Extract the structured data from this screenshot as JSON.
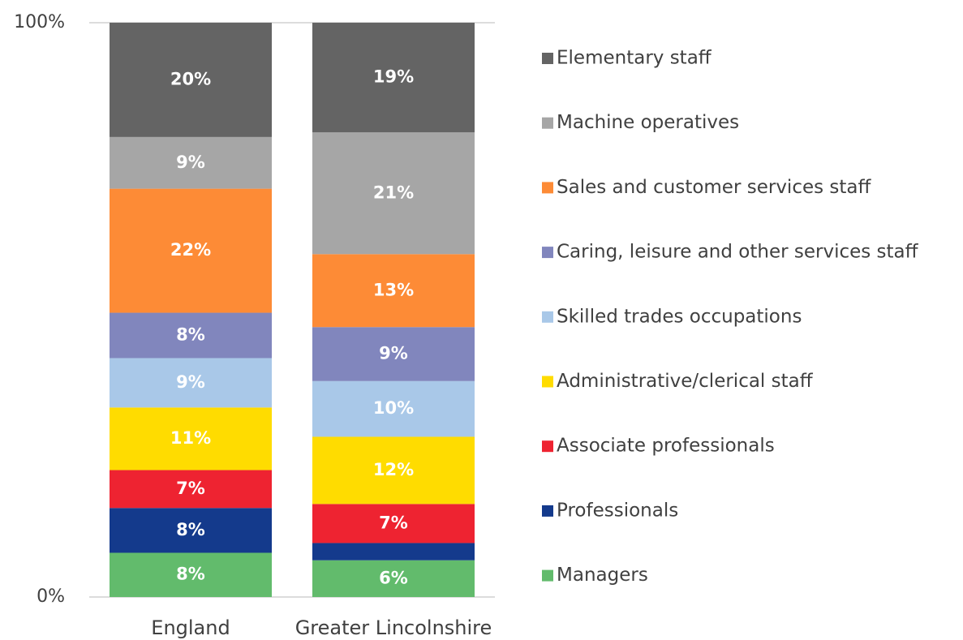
{
  "chart_data": {
    "type": "stacked_bar",
    "categories": [
      "England",
      "Greater Lincolnshire"
    ],
    "ylim": [
      0,
      100
    ],
    "yticks": [
      {
        "value": 0,
        "label": "0%"
      },
      {
        "value": 100,
        "label": "100%"
      }
    ],
    "grid": true,
    "legend": "right",
    "series": [
      {
        "name": "Managers",
        "color": "#62bb6c",
        "values": [
          7.7,
          6.4
        ],
        "value_labels": [
          "8%",
          "6%"
        ]
      },
      {
        "name": "Professionals",
        "color": "#143a8c",
        "values": [
          7.8,
          3.0
        ],
        "value_labels": [
          "8%",
          null
        ]
      },
      {
        "name": "Associate professionals",
        "color": "#ee2331",
        "values": [
          6.6,
          6.8
        ],
        "value_labels": [
          "7%",
          "7%"
        ]
      },
      {
        "name": "Administrative/clerical staff",
        "color": "#ffdc00",
        "values": [
          10.9,
          11.7
        ],
        "value_labels": [
          "11%",
          "12%"
        ]
      },
      {
        "name": "Skilled trades occupations",
        "color": "#a9c8e8",
        "values": [
          8.6,
          9.7
        ],
        "value_labels": [
          "9%",
          "10%"
        ]
      },
      {
        "name": "Caring, leisure and other services staff",
        "color": "#8186bd",
        "values": [
          7.9,
          9.4
        ],
        "value_labels": [
          "8%",
          "9%"
        ]
      },
      {
        "name": "Sales and customer services staff",
        "color": "#fd8b36",
        "values": [
          21.6,
          12.7
        ],
        "value_labels": [
          "22%",
          "13%"
        ]
      },
      {
        "name": "Machine operatives",
        "color": "#a6a6a6",
        "values": [
          9.0,
          21.2
        ],
        "value_labels": [
          "9%",
          "21%"
        ]
      },
      {
        "name": "Elementary staff",
        "color": "#646464",
        "values": [
          19.9,
          19.1
        ],
        "value_labels": [
          "20%",
          "19%"
        ]
      }
    ]
  }
}
